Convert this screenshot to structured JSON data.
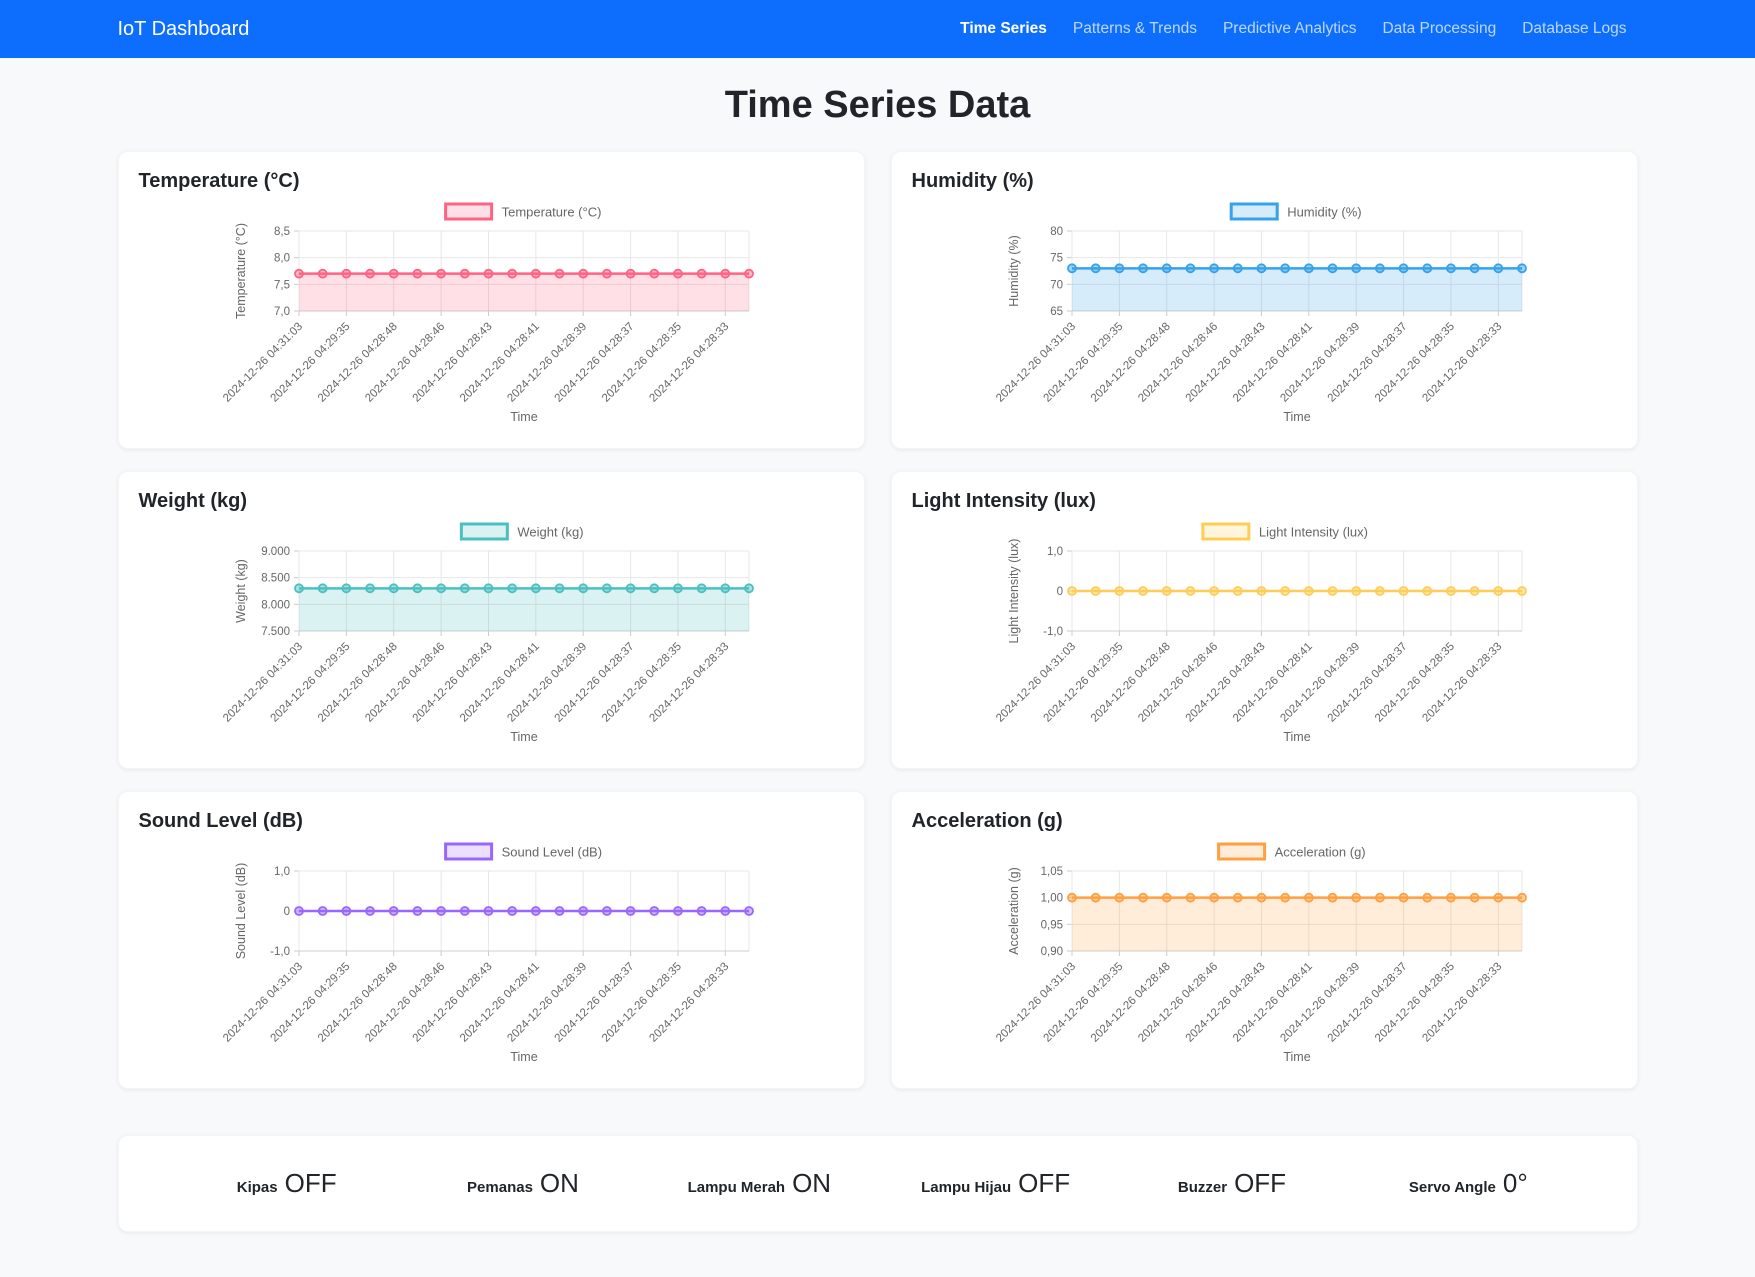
{
  "navbar": {
    "brand": "IoT Dashboard",
    "items": [
      {
        "label": "Time Series",
        "active": true
      },
      {
        "label": "Patterns & Trends",
        "active": false
      },
      {
        "label": "Predictive Analytics",
        "active": false
      },
      {
        "label": "Data Processing",
        "active": false
      },
      {
        "label": "Database Logs",
        "active": false
      }
    ]
  },
  "page": {
    "title": "Time Series Data"
  },
  "chart_data": [
    {
      "type": "line",
      "title": "Temperature (°C)",
      "legend": "Temperature (°C)",
      "ylabel": "Temperature (°C)",
      "xlabel": "Time",
      "y_tick_labels": [
        "8,5",
        "8,0",
        "7,5",
        "7,0"
      ],
      "ylim": [
        7.0,
        8.5
      ],
      "constant_value": 7.7,
      "num_points": 20,
      "line_color": "#FF6384",
      "fill_color": "rgba(255,99,132,0.2)",
      "fill_to_bottom": true,
      "x_tick_labels": [
        "2024-12-26 04:31:03",
        "2024-12-26 04:29:35",
        "2024-12-26 04:28:48",
        "2024-12-26 04:28:46",
        "2024-12-26 04:28:43",
        "2024-12-26 04:28:41",
        "2024-12-26 04:28:39",
        "2024-12-26 04:28:37",
        "2024-12-26 04:28:35",
        "2024-12-26 04:28:33"
      ]
    },
    {
      "type": "line",
      "title": "Humidity (%)",
      "legend": "Humidity (%)",
      "ylabel": "Humidity (%)",
      "xlabel": "Time",
      "y_tick_labels": [
        "80",
        "75",
        "70",
        "65"
      ],
      "ylim": [
        65,
        80
      ],
      "constant_value": 73,
      "num_points": 20,
      "line_color": "#36A2EB",
      "fill_color": "rgba(54,162,235,0.2)",
      "fill_to_bottom": true,
      "x_tick_labels": [
        "2024-12-26 04:31:03",
        "2024-12-26 04:29:35",
        "2024-12-26 04:28:48",
        "2024-12-26 04:28:46",
        "2024-12-26 04:28:43",
        "2024-12-26 04:28:41",
        "2024-12-26 04:28:39",
        "2024-12-26 04:28:37",
        "2024-12-26 04:28:35",
        "2024-12-26 04:28:33"
      ]
    },
    {
      "type": "line",
      "title": "Weight (kg)",
      "legend": "Weight (kg)",
      "ylabel": "Weight (kg)",
      "xlabel": "Time",
      "y_tick_labels": [
        "9.000",
        "8.500",
        "8.000",
        "7.500"
      ],
      "ylim": [
        7500,
        9000
      ],
      "constant_value": 8300,
      "num_points": 20,
      "line_color": "#4BC0C0",
      "fill_color": "rgba(75,192,192,0.2)",
      "fill_to_bottom": true,
      "x_tick_labels": [
        "2024-12-26 04:31:03",
        "2024-12-26 04:29:35",
        "2024-12-26 04:28:48",
        "2024-12-26 04:28:46",
        "2024-12-26 04:28:43",
        "2024-12-26 04:28:41",
        "2024-12-26 04:28:39",
        "2024-12-26 04:28:37",
        "2024-12-26 04:28:35",
        "2024-12-26 04:28:33"
      ]
    },
    {
      "type": "line",
      "title": "Light Intensity (lux)",
      "legend": "Light Intensity (lux)",
      "ylabel": "Light Intensity (lux)",
      "xlabel": "Time",
      "y_tick_labels": [
        "1,0",
        "0",
        "-1,0"
      ],
      "ylim": [
        -1.0,
        1.0
      ],
      "constant_value": 0,
      "num_points": 20,
      "line_color": "#FFCD56",
      "fill_color": "rgba(255,205,86,0.2)",
      "fill_to_bottom": false,
      "x_tick_labels": [
        "2024-12-26 04:31:03",
        "2024-12-26 04:29:35",
        "2024-12-26 04:28:48",
        "2024-12-26 04:28:46",
        "2024-12-26 04:28:43",
        "2024-12-26 04:28:41",
        "2024-12-26 04:28:39",
        "2024-12-26 04:28:37",
        "2024-12-26 04:28:35",
        "2024-12-26 04:28:33"
      ]
    },
    {
      "type": "line",
      "title": "Sound Level (dB)",
      "legend": "Sound Level (dB)",
      "ylabel": "Sound Level (dB)",
      "xlabel": "Time",
      "y_tick_labels": [
        "1,0",
        "0",
        "-1,0"
      ],
      "ylim": [
        -1.0,
        1.0
      ],
      "constant_value": 0,
      "num_points": 20,
      "line_color": "#9966FF",
      "fill_color": "rgba(153,102,255,0.2)",
      "fill_to_bottom": false,
      "x_tick_labels": [
        "2024-12-26 04:31:03",
        "2024-12-26 04:29:35",
        "2024-12-26 04:28:48",
        "2024-12-26 04:28:46",
        "2024-12-26 04:28:43",
        "2024-12-26 04:28:41",
        "2024-12-26 04:28:39",
        "2024-12-26 04:28:37",
        "2024-12-26 04:28:35",
        "2024-12-26 04:28:33"
      ]
    },
    {
      "type": "line",
      "title": "Acceleration (g)",
      "legend": "Acceleration (g)",
      "ylabel": "Acceleration (g)",
      "xlabel": "Time",
      "y_tick_labels": [
        "1,05",
        "1,00",
        "0,95",
        "0,90"
      ],
      "ylim": [
        0.9,
        1.05
      ],
      "constant_value": 1.0,
      "num_points": 20,
      "line_color": "#FF9F40",
      "fill_color": "rgba(255,159,64,0.2)",
      "fill_to_bottom": true,
      "x_tick_labels": [
        "2024-12-26 04:31:03",
        "2024-12-26 04:29:35",
        "2024-12-26 04:28:48",
        "2024-12-26 04:28:46",
        "2024-12-26 04:28:43",
        "2024-12-26 04:28:41",
        "2024-12-26 04:28:39",
        "2024-12-26 04:28:37",
        "2024-12-26 04:28:35",
        "2024-12-26 04:28:33"
      ]
    }
  ],
  "status": {
    "items": [
      {
        "label": "Kipas",
        "value": "OFF"
      },
      {
        "label": "Pemanas",
        "value": "ON"
      },
      {
        "label": "Lampu Merah",
        "value": "ON"
      },
      {
        "label": "Lampu Hijau",
        "value": "OFF"
      },
      {
        "label": "Buzzer",
        "value": "OFF"
      },
      {
        "label": "Servo Angle",
        "value": "0°"
      }
    ]
  }
}
